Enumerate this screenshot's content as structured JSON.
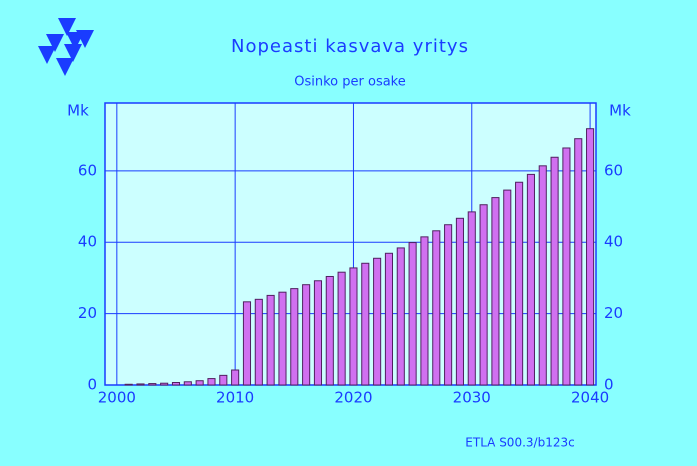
{
  "chart_data": {
    "type": "bar",
    "title": "Nopeasti kasvava yritys",
    "subtitle": "Osinko per osake",
    "y_label": "Mk",
    "y2_label": "Mk",
    "footer": "ETLA S00.3/b123c",
    "x": [
      2001,
      2002,
      2003,
      2004,
      2005,
      2006,
      2007,
      2008,
      2009,
      2010,
      2011,
      2012,
      2013,
      2014,
      2015,
      2016,
      2017,
      2018,
      2019,
      2020,
      2021,
      2022,
      2023,
      2024,
      2025,
      2026,
      2027,
      2028,
      2029,
      2030,
      2031,
      2032,
      2033,
      2034,
      2035,
      2036,
      2037,
      2038,
      2039,
      2040
    ],
    "values": [
      0.2,
      0.3,
      0.4,
      0.5,
      0.7,
      0.9,
      1.2,
      1.8,
      2.7,
      4.2,
      23.3,
      24.0,
      25.1,
      26.0,
      27.0,
      28.1,
      29.2,
      30.4,
      31.6,
      32.8,
      34.1,
      35.5,
      36.9,
      38.4,
      39.9,
      41.5,
      43.2,
      44.9,
      46.7,
      48.5,
      50.5,
      52.5,
      54.6,
      56.8,
      59.0,
      61.4,
      63.8,
      66.4,
      69.0,
      71.8
    ],
    "color": "#d070f0",
    "xlim": [
      1999,
      2040.5
    ],
    "xticks": [
      2000,
      2010,
      2020,
      2030,
      2040
    ],
    "ylim": [
      0,
      79
    ],
    "yticks": [
      0,
      20,
      40,
      60
    ],
    "grid": true
  }
}
